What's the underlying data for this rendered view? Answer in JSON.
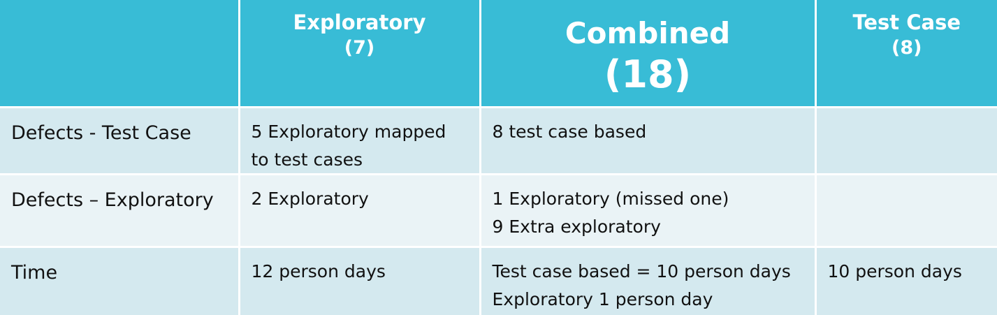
{
  "table": {
    "columns": [
      {
        "title": "Exploratory",
        "count": "(7)"
      },
      {
        "title": "Combined",
        "count": "(18)"
      },
      {
        "title": "Test Case",
        "count": "(8)"
      }
    ],
    "rows": [
      {
        "label": "Defects - Test Case",
        "cells": [
          [
            "5 Exploratory mapped to test cases"
          ],
          [
            "8 test case based"
          ],
          null
        ]
      },
      {
        "label": "Defects – Exploratory",
        "cells": [
          [
            "2 Exploratory"
          ],
          [
            "1 Exploratory (missed one)",
            "9 Extra exploratory"
          ],
          null
        ]
      },
      {
        "label": "Time",
        "cells": [
          [
            "12 person days"
          ],
          [
            "Test case based = 10 person days",
            "Exploratory 1 person day"
          ],
          [
            "10 person days"
          ]
        ]
      }
    ]
  }
}
